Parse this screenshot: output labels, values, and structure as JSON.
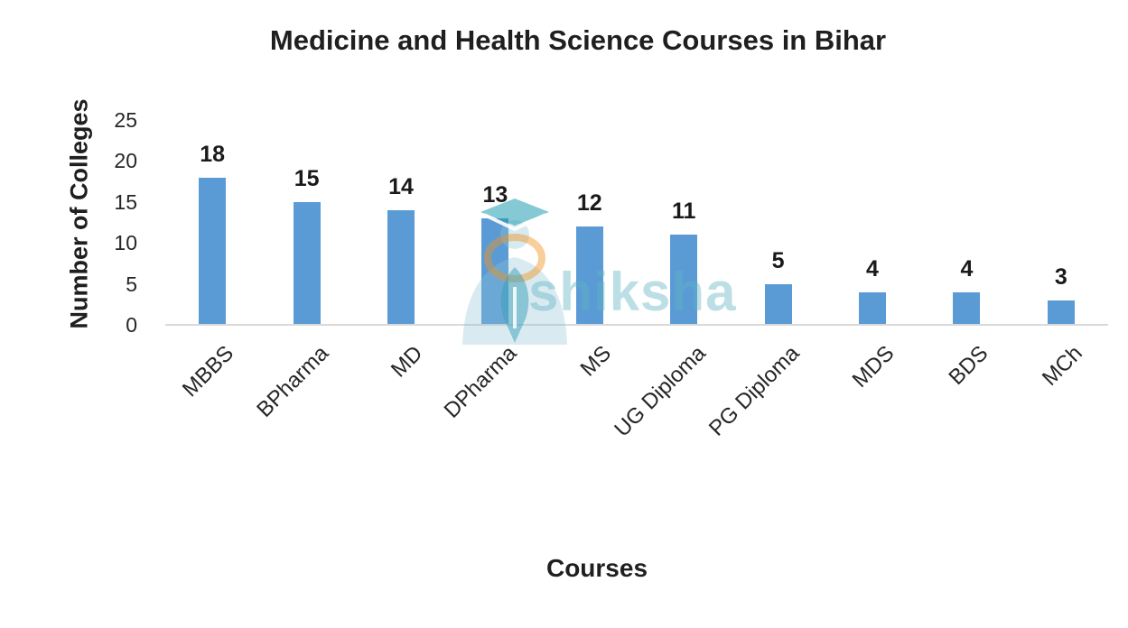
{
  "chart_data": {
    "type": "bar",
    "title": "Medicine and Health Science Courses in Bihar",
    "xlabel": "Courses",
    "ylabel": "Number of Colleges",
    "categories": [
      "MBBS",
      "BPharma",
      "MD",
      "DPharma",
      "MS",
      "UG Diploma",
      "PG Diploma",
      "MDS",
      "BDS",
      "MCh"
    ],
    "values": [
      18,
      15,
      14,
      13,
      12,
      11,
      5,
      4,
      4,
      3
    ],
    "yticks": [
      0,
      5,
      10,
      15,
      20,
      25
    ],
    "ylim": [
      0,
      25
    ],
    "grid": false,
    "legend": "none",
    "data_labels": true,
    "bar_color": "#5b9bd5",
    "axis_line_color": "#d9d9d9",
    "text_color": "#262626"
  },
  "watermark": {
    "text": "shiksha"
  }
}
